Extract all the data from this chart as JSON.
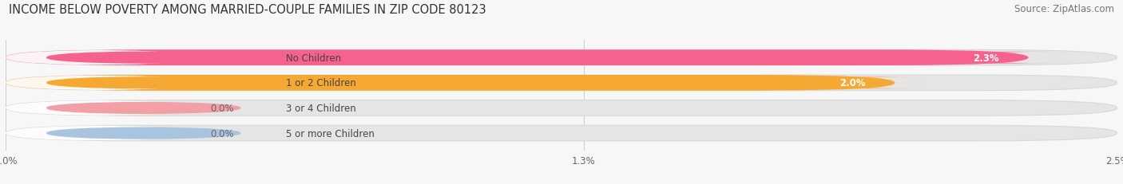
{
  "title": "INCOME BELOW POVERTY AMONG MARRIED-COUPLE FAMILIES IN ZIP CODE 80123",
  "source": "Source: ZipAtlas.com",
  "categories": [
    "No Children",
    "1 or 2 Children",
    "3 or 4 Children",
    "5 or more Children"
  ],
  "values": [
    2.3,
    2.0,
    0.0,
    0.0
  ],
  "bar_colors": [
    "#f7618e",
    "#f5a832",
    "#f2a0a5",
    "#a8c4df"
  ],
  "track_color": "#e5e5e5",
  "track_border_color": "#d8d8d8",
  "xlim": [
    0,
    2.5
  ],
  "xticks": [
    0.0,
    1.3,
    2.5
  ],
  "xtick_labels": [
    "0.0%",
    "1.3%",
    "2.5%"
  ],
  "background_color": "#f7f7f7",
  "bar_height": 0.62,
  "label_fontsize": 8.5,
  "title_fontsize": 10.5,
  "source_fontsize": 8.5,
  "value_fontsize": 8.5
}
